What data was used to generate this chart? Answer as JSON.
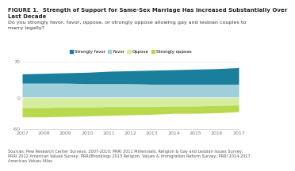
{
  "years": [
    2007,
    2008,
    2009,
    2010,
    2011,
    2012,
    2013,
    2014,
    2015,
    2016,
    2017
  ],
  "strongly_favor": [
    18,
    19,
    20,
    22,
    24,
    25,
    27,
    28,
    29,
    30,
    32
  ],
  "favor": [
    28,
    28,
    28,
    27,
    27,
    27,
    26,
    26,
    26,
    26,
    26
  ],
  "oppose": [
    -19,
    -19,
    -18,
    -18,
    -17,
    -17,
    -17,
    -16,
    -16,
    -15,
    -14
  ],
  "strongly_oppose": [
    -18,
    -18,
    -18,
    -17,
    -17,
    -16,
    -15,
    -14,
    -14,
    -14,
    -13
  ],
  "color_strongly_favor": "#1a7f9c",
  "color_favor": "#9ecfda",
  "color_oppose": "#d6eda0",
  "color_strongly_oppose": "#b8d94e",
  "ylim": [
    -60,
    70
  ],
  "ytick_vals": [
    -60,
    0,
    70
  ],
  "ytick_labels": [
    "-60",
    "0",
    "70"
  ],
  "title_line1": "FIGURE 1.  Strength of Support for Same-Sex Marriage Has Increased Substantially Over",
  "title_line2": "Last Decade",
  "subtitle": "Do you strongly favor, favor, oppose, or strongly oppose allowing gay and lesbian couples to\nmarry legally?",
  "legend_labels": [
    "Strongly favor",
    "Favor",
    "Oppose",
    "Strongly oppose"
  ],
  "source": "Sources: Pew Research Center Surveys, 2007-2010; PRRI 2011 Millennials, Religion & Gay and Lesbian Issues Survey;\nPRRI 2012 American Values Survey; PRRI/Brookings 2013 Religion, Values & Immigration Reform Survey; PRRI 2014-2017\nAmerican Values Atlas."
}
